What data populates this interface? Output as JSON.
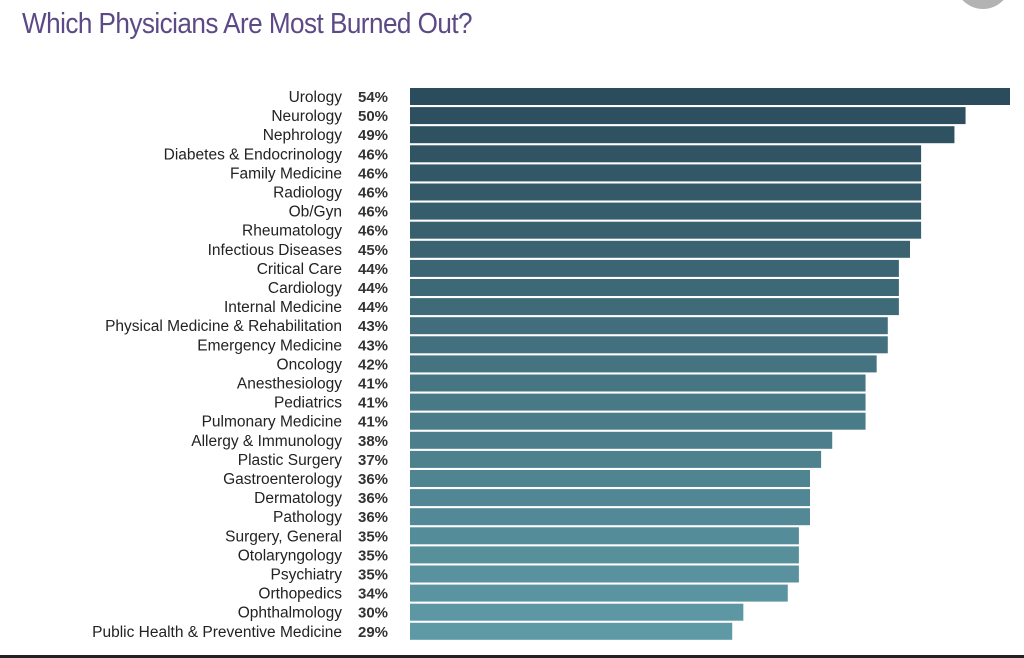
{
  "title": "Which Physicians Are Most Burned Out?",
  "colors": {
    "title": "#5b4a86",
    "bar_top": "#2b4c5c",
    "bar_bottom": "#5e9aa6"
  },
  "chart_data": {
    "type": "bar",
    "orientation": "horizontal",
    "title": "Which Physicians Are Most Burned Out?",
    "xlabel": "",
    "ylabel": "",
    "xlim": [
      0,
      54
    ],
    "grid": false,
    "categories": [
      "Urology",
      "Neurology",
      "Nephrology",
      "Diabetes & Endocrinology",
      "Family Medicine",
      "Radiology",
      "Ob/Gyn",
      "Rheumatology",
      "Infectious Diseases",
      "Critical Care",
      "Cardiology",
      "Internal Medicine",
      "Physical Medicine & Rehabilitation",
      "Emergency Medicine",
      "Oncology",
      "Anesthesiology",
      "Pediatrics",
      "Pulmonary Medicine",
      "Allergy & Immunology",
      "Plastic Surgery",
      "Gastroenterology",
      "Dermatology",
      "Pathology",
      "Surgery, General",
      "Otolaryngology",
      "Psychiatry",
      "Orthopedics",
      "Ophthalmology",
      "Public Health & Preventive Medicine"
    ],
    "values": [
      54,
      50,
      49,
      46,
      46,
      46,
      46,
      46,
      45,
      44,
      44,
      44,
      43,
      43,
      42,
      41,
      41,
      41,
      38,
      37,
      36,
      36,
      36,
      35,
      35,
      35,
      34,
      30,
      29
    ],
    "value_labels": [
      "54%",
      "50%",
      "49%",
      "46%",
      "46%",
      "46%",
      "46%",
      "46%",
      "45%",
      "44%",
      "44%",
      "44%",
      "43%",
      "43%",
      "42%",
      "41%",
      "41%",
      "41%",
      "38%",
      "37%",
      "36%",
      "36%",
      "36%",
      "35%",
      "35%",
      "35%",
      "34%",
      "30%",
      "29%"
    ]
  }
}
